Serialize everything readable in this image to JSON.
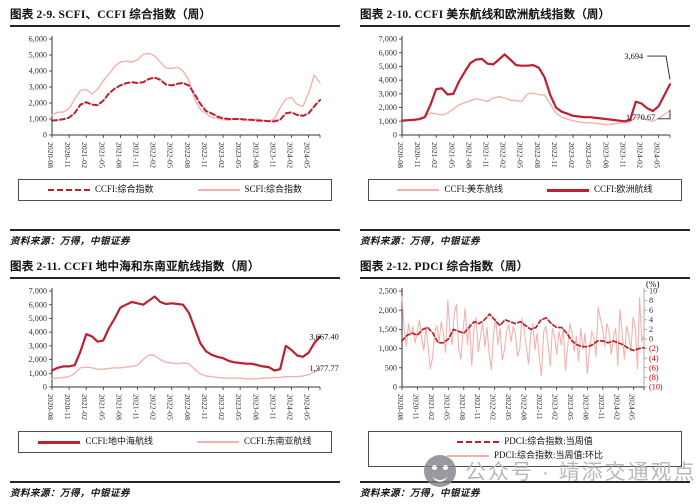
{
  "watermark": {
    "text": "公众号 · 靖添交通观点"
  },
  "chart_data": [
    {
      "type": "line",
      "title": "图表 2-9. SCFI、CCFI 综合指数（周）",
      "source": "资料来源：万得，中银证券",
      "ylim": [
        0,
        6000
      ],
      "yticks": [
        "6,000",
        "5,000",
        "4,000",
        "3,000",
        "2,000",
        "1,000",
        "0"
      ],
      "categories": [
        "2020-08",
        "2020-11",
        "2021-02",
        "2021-05",
        "2021-08",
        "2021-11",
        "2022-02",
        "2022-05",
        "2022-08",
        "2022-11",
        "2023-02",
        "2023-05",
        "2023-08",
        "2023-11",
        "2024-02",
        "2024-05"
      ],
      "legend": [
        {
          "label": "CCFI:综合指数",
          "color": "#bc1f2f",
          "dash": true,
          "width": 2
        },
        {
          "label": "SCFI:综合指数",
          "color": "#f1b3ad",
          "dash": false,
          "width": 2
        }
      ],
      "series": [
        {
          "name": "SCFI:综合指数",
          "color": "#f1b3ad",
          "width": 1.4,
          "values": [
            1270,
            1420,
            1440,
            1660,
            2250,
            2780,
            2850,
            2570,
            2860,
            3400,
            3800,
            4300,
            4560,
            4620,
            4560,
            4700,
            5050,
            5100,
            4950,
            4550,
            4180,
            4160,
            4230,
            4000,
            3400,
            2250,
            1600,
            1350,
            1100,
            1030,
            950,
            930,
            1000,
            980,
            950,
            930,
            1010,
            900,
            890,
            1000,
            1700,
            2250,
            2350,
            1900,
            1780,
            2600,
            3750,
            3250
          ]
        },
        {
          "name": "CCFI:综合指数",
          "color": "#bc1f2f",
          "width": 2,
          "dash": "5,3",
          "values": [
            900,
            940,
            990,
            1090,
            1380,
            1900,
            2050,
            1900,
            1860,
            2150,
            2600,
            2900,
            3100,
            3240,
            3300,
            3250,
            3300,
            3500,
            3590,
            3450,
            3150,
            3100,
            3200,
            3250,
            3100,
            2550,
            1950,
            1500,
            1350,
            1150,
            1050,
            1000,
            1000,
            1000,
            960,
            950,
            900,
            900,
            860,
            850,
            950,
            1350,
            1420,
            1250,
            1200,
            1350,
            1800,
            2180
          ]
        }
      ]
    },
    {
      "type": "line",
      "title": "图表 2-10. CCFI 美东航线和欧洲航线指数（周）",
      "source": "资料来源：万得，中银证券",
      "ylim": [
        0,
        7000
      ],
      "yticks": [
        "7,000",
        "6,000",
        "5,000",
        "4,000",
        "3,000",
        "2,000",
        "1,000",
        "0"
      ],
      "categories": [
        "2020-08",
        "2020-11",
        "2021-02",
        "2021-05",
        "2021-08",
        "2021-11",
        "2022-02",
        "2022-05",
        "2022-08",
        "2022-11",
        "2023-02",
        "2023-05",
        "2023-08",
        "2023-11",
        "2024-02",
        "2024-05"
      ],
      "legend": [
        {
          "label": "CCFI:美东航线",
          "color": "#f1b3ad",
          "dash": false,
          "width": 2
        },
        {
          "label": "CCFI:欧洲航线",
          "color": "#bc1f2f",
          "dash": false,
          "width": 3
        }
      ],
      "annotations": [
        {
          "text": "3,694",
          "xf": 0.9,
          "yv": 5750,
          "anchor": "end",
          "connector": [
            [
              0.915,
              5750
            ],
            [
              0.985,
              5750
            ],
            [
              1.0,
              4050
            ]
          ]
        },
        {
          "text": "1,770.67",
          "xf": 0.945,
          "yv": 1300,
          "anchor": "end",
          "connector": [
            [
              0.955,
              1180
            ],
            [
              1.0,
              1180
            ],
            [
              1.0,
              1850
            ]
          ]
        }
      ],
      "series": [
        {
          "name": "CCFI:美东航线",
          "color": "#f1b3ad",
          "width": 1.4,
          "values": [
            1000,
            1040,
            1100,
            1200,
            1350,
            1600,
            1550,
            1450,
            1600,
            1900,
            2200,
            2350,
            2500,
            2650,
            2550,
            2450,
            2700,
            2800,
            2700,
            2550,
            2500,
            2450,
            3000,
            3050,
            2950,
            2900,
            2250,
            1600,
            1300,
            1150,
            1050,
            950,
            900,
            900,
            850,
            800,
            750,
            800,
            850,
            900,
            950,
            1300,
            1300,
            1100,
            1000,
            1200,
            1500,
            1770.67
          ]
        },
        {
          "name": "CCFI:欧洲航线",
          "color": "#bc1f2f",
          "width": 2.2,
          "values": [
            1050,
            1080,
            1100,
            1150,
            1300,
            2200,
            3350,
            3400,
            2950,
            3000,
            3900,
            4600,
            5250,
            5500,
            5550,
            5200,
            5150,
            5500,
            5880,
            5500,
            5100,
            5050,
            5050,
            5100,
            4900,
            4200,
            2900,
            2000,
            1700,
            1550,
            1400,
            1350,
            1300,
            1300,
            1250,
            1200,
            1150,
            1100,
            1050,
            1000,
            1100,
            2430,
            2300,
            1950,
            1750,
            2100,
            2900,
            3694
          ]
        }
      ]
    },
    {
      "type": "line",
      "title": "图表 2-11. CCFI 地中海和东南亚航线指数（周）",
      "source": "资料来源：万得，中银证券",
      "ylim": [
        0,
        7000
      ],
      "yticks": [
        "7,000",
        "6,000",
        "5,000",
        "4,000",
        "3,000",
        "2,000",
        "1,000",
        "0"
      ],
      "categories": [
        "2020-08",
        "2020-11",
        "2021-02",
        "2021-05",
        "2021-08",
        "2021-11",
        "2022-02",
        "2022-05",
        "2022-08",
        "2022-11",
        "2023-02",
        "2023-05",
        "2023-08",
        "2023-11",
        "2024-02",
        "2024-05"
      ],
      "legend": [
        {
          "label": "CCFI:地中海航线",
          "color": "#bc1f2f",
          "dash": false,
          "width": 3
        },
        {
          "label": "CCFI:东南亚航线",
          "color": "#f1b3ad",
          "dash": false,
          "width": 2
        }
      ],
      "annotations": [
        {
          "text": "3,667.40",
          "xf": 1.07,
          "yv": 3667,
          "anchor": "end"
        },
        {
          "text": "1,377.77",
          "xf": 1.07,
          "yv": 1377,
          "anchor": "end"
        }
      ],
      "series": [
        {
          "name": "CCFI:东南亚航线",
          "color": "#f1b3ad",
          "width": 1.4,
          "values": [
            600,
            650,
            700,
            750,
            1000,
            1400,
            1450,
            1400,
            1300,
            1300,
            1350,
            1400,
            1400,
            1450,
            1500,
            1600,
            2000,
            2350,
            2300,
            2000,
            1800,
            1750,
            1700,
            1750,
            1700,
            1300,
            950,
            800,
            750,
            700,
            650,
            650,
            650,
            650,
            600,
            600,
            600,
            650,
            650,
            700,
            700,
            750,
            750,
            750,
            800,
            900,
            1100,
            1377.77
          ]
        },
        {
          "name": "CCFI:地中海航线",
          "color": "#bc1f2f",
          "width": 2.2,
          "values": [
            1200,
            1400,
            1500,
            1500,
            1600,
            2600,
            3850,
            3700,
            3300,
            3400,
            4300,
            5000,
            5800,
            6000,
            6200,
            6100,
            6000,
            6300,
            6600,
            6200,
            6050,
            6100,
            6050,
            6000,
            5400,
            4300,
            3200,
            2600,
            2350,
            2200,
            2100,
            1900,
            1800,
            1750,
            1700,
            1700,
            1600,
            1500,
            1450,
            1200,
            1300,
            3000,
            2700,
            2300,
            2200,
            2500,
            3200,
            3667.4
          ]
        }
      ]
    },
    {
      "type": "line",
      "title": "图表 2-12. PDCI 综合指数（周）",
      "source": "资料来源：万得，中银证券",
      "ylim": [
        0,
        2500
      ],
      "yticks": [
        "2,500",
        "2,000",
        "1,500",
        "1,000",
        "500",
        "0"
      ],
      "right_ylim": [
        -10,
        10
      ],
      "right_yticks": [
        "10",
        "8",
        "6",
        "4",
        "2",
        "0",
        "(2)",
        "(4)",
        "(6)",
        "(8)",
        "(10)"
      ],
      "right_label": "(%)",
      "categories": [
        "2020-08",
        "2020-11",
        "2021-02",
        "2021-05",
        "2021-08",
        "2021-11",
        "2022-02",
        "2022-05",
        "2022-08",
        "2022-11",
        "2023-02",
        "2023-05",
        "2023-08",
        "2023-11",
        "2024-02",
        "2024-05"
      ],
      "legend": [
        {
          "label": "PDCI:综合指数:当周值",
          "color": "#bc1f2f",
          "dash": true,
          "width": 2
        },
        {
          "label": "PDCI:综合指数:当周值:环比",
          "color": "#f1b3ad",
          "dash": false,
          "width": 2
        }
      ],
      "series": [
        {
          "name": "PDCI:综合指数:当周值:环比",
          "color": "#f1b3ad",
          "width": 1.1,
          "axis": "right",
          "values": [
            8.8,
            2.0,
            -1.5,
            3.2,
            0.8,
            2.6,
            -0.8,
            1.5,
            4.0,
            0.2,
            -2.4,
            2.6,
            -1.8,
            -6.2,
            -4.0,
            1.2,
            2.8,
            -0.6,
            3.6,
            1.2,
            -2.8,
            8.0,
            1.6,
            -1.2,
            5.4,
            7.2,
            -2.2,
            -4.2,
            1.8,
            6.4,
            -1.2,
            3.2,
            -5.6,
            2.2,
            4.4,
            -2.6,
            0.6,
            3.4,
            -1.6,
            2.4,
            -3.2,
            -6.4,
            1.2,
            4.2,
            -1.2,
            2.2,
            -4.4,
            -2.2,
            1.6,
            3.0,
            -0.6,
            2.6,
            1.2,
            -3.6,
            -2.2,
            4.2,
            2.2,
            -1.6,
            -5.2,
            0.6,
            3.2,
            -2.2,
            1.2,
            -4.2,
            -7.6,
            1.6,
            2.6,
            -1.2,
            -5.6,
            2.2,
            0.6,
            -3.2,
            1.6,
            -1.2,
            2.2,
            -6.6,
            -1.6,
            3.2,
            1.2,
            -2.6,
            0.6,
            -4.6,
            2.2,
            -2.2,
            1.2,
            -7.2,
            -2.6,
            1.6,
            0.2,
            -3.6,
            6.6,
            4.2,
            2.2,
            -1.6,
            3.2,
            1.6,
            -3.2,
            0.6,
            2.2,
            -5.6,
            6.2,
            1.2,
            -4.2,
            2.6,
            0.8,
            -2.6,
            4.6,
            2.2,
            -6.2,
            8.6,
            -0.6,
            1.0
          ]
        },
        {
          "name": "PDCI:综合指数:当周值",
          "color": "#bc1f2f",
          "width": 1.7,
          "dash": "4,2.5",
          "values": [
            1200,
            1350,
            1400,
            1350,
            1500,
            1550,
            1400,
            1150,
            1150,
            1250,
            1500,
            1450,
            1400,
            1550,
            1700,
            1650,
            1750,
            1900,
            1750,
            1600,
            1750,
            1700,
            1650,
            1700,
            1600,
            1500,
            1550,
            1750,
            1800,
            1650,
            1550,
            1550,
            1400,
            1200,
            1100,
            1050,
            1050,
            1100,
            1200,
            1200,
            1150,
            1200,
            1150,
            1100,
            1000,
            950,
            1000,
            1020
          ]
        }
      ]
    }
  ]
}
